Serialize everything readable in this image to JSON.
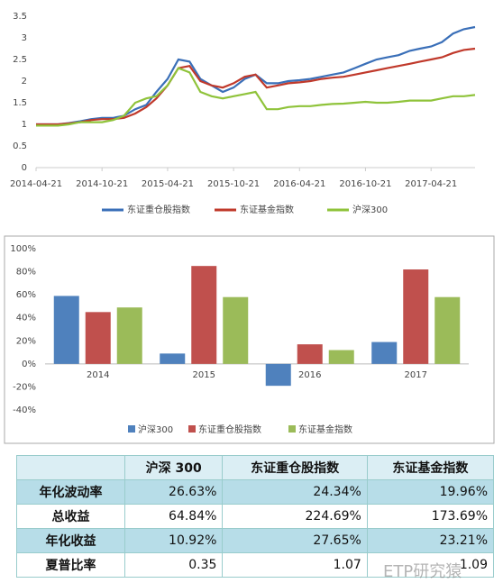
{
  "chart_data": [
    {
      "type": "line",
      "x": [
        "2014-04-21",
        "2014-05-21",
        "2014-06-21",
        "2014-07-21",
        "2014-08-21",
        "2014-09-21",
        "2014-10-21",
        "2014-11-21",
        "2014-12-21",
        "2015-01-21",
        "2015-02-21",
        "2015-03-21",
        "2015-04-21",
        "2015-05-21",
        "2015-06-21",
        "2015-07-21",
        "2015-08-21",
        "2015-09-21",
        "2015-10-21",
        "2015-11-21",
        "2015-12-21",
        "2016-01-21",
        "2016-02-21",
        "2016-03-21",
        "2016-04-21",
        "2016-05-21",
        "2016-06-21",
        "2016-07-21",
        "2016-08-21",
        "2016-09-21",
        "2016-10-21",
        "2016-11-21",
        "2016-12-21",
        "2017-01-21",
        "2017-02-21",
        "2017-03-21",
        "2017-04-21",
        "2017-05-21",
        "2017-06-21",
        "2017-07-21",
        "2017-08-21"
      ],
      "series": [
        {
          "name": "东证重仓股指数",
          "color": "#3a6fb8",
          "values": [
            1.0,
            1.0,
            1.0,
            1.03,
            1.07,
            1.12,
            1.15,
            1.15,
            1.2,
            1.35,
            1.45,
            1.75,
            2.05,
            2.5,
            2.45,
            2.05,
            1.9,
            1.75,
            1.85,
            2.05,
            2.15,
            1.95,
            1.95,
            2.0,
            2.02,
            2.05,
            2.1,
            2.15,
            2.2,
            2.3,
            2.4,
            2.5,
            2.55,
            2.6,
            2.7,
            2.75,
            2.8,
            2.9,
            3.1,
            3.2,
            3.25
          ]
        },
        {
          "name": "东证基金指数",
          "color": "#c0392b",
          "values": [
            1.0,
            1.0,
            1.0,
            1.02,
            1.05,
            1.1,
            1.12,
            1.12,
            1.15,
            1.25,
            1.4,
            1.6,
            1.9,
            2.3,
            2.35,
            2.0,
            1.9,
            1.85,
            1.95,
            2.1,
            2.15,
            1.85,
            1.9,
            1.95,
            1.97,
            2.0,
            2.05,
            2.08,
            2.1,
            2.15,
            2.2,
            2.25,
            2.3,
            2.35,
            2.4,
            2.45,
            2.5,
            2.55,
            2.65,
            2.72,
            2.75
          ]
        },
        {
          "name": "沪深300",
          "color": "#8fc33a",
          "values": [
            0.97,
            0.97,
            0.97,
            1.0,
            1.05,
            1.05,
            1.05,
            1.1,
            1.2,
            1.5,
            1.6,
            1.65,
            1.9,
            2.3,
            2.2,
            1.75,
            1.65,
            1.6,
            1.65,
            1.7,
            1.75,
            1.35,
            1.35,
            1.4,
            1.42,
            1.42,
            1.45,
            1.47,
            1.48,
            1.5,
            1.52,
            1.5,
            1.5,
            1.52,
            1.55,
            1.55,
            1.55,
            1.6,
            1.65,
            1.65,
            1.68
          ]
        }
      ],
      "xlim": [
        "2014-04-21",
        "2017-08-21"
      ],
      "xticks": [
        "2014-04-21",
        "2014-10-21",
        "2015-04-21",
        "2015-10-21",
        "2016-04-21",
        "2016-10-21",
        "2017-04-21"
      ],
      "ylim": [
        0,
        3.5
      ],
      "yticks": [
        0,
        0.5,
        1,
        1.5,
        2,
        2.5,
        3,
        3.5
      ],
      "grid": false,
      "legend": "bottom"
    },
    {
      "type": "bar",
      "categories": [
        "2014",
        "2015",
        "2016",
        "2017"
      ],
      "series": [
        {
          "name": "沪深300",
          "color": "#4f81bd",
          "values": [
            59,
            9,
            -19,
            19
          ]
        },
        {
          "name": "东证重仓股指数",
          "color": "#c0504d",
          "values": [
            45,
            85,
            17,
            82
          ]
        },
        {
          "name": "东证基金指数",
          "color": "#9bbb59",
          "values": [
            49,
            58,
            12,
            58
          ]
        }
      ],
      "ylim": [
        -40,
        100
      ],
      "yticks": [
        {
          "value": -40,
          "label": "-40%"
        },
        {
          "value": -20,
          "label": "-20%"
        },
        {
          "value": 0,
          "label": "0%"
        },
        {
          "value": 20,
          "label": "20%"
        },
        {
          "value": 40,
          "label": "40%"
        },
        {
          "value": 60,
          "label": "60%"
        },
        {
          "value": 80,
          "label": "80%"
        },
        {
          "value": 100,
          "label": "100%"
        }
      ],
      "grid": false,
      "legend": "bottom"
    }
  ],
  "table": {
    "header": [
      "沪深 300",
      "东证重仓股指数",
      "东证基金指数"
    ],
    "rows": [
      [
        "年化波动率",
        "26.63%",
        "24.34%",
        "19.96%"
      ],
      [
        "总收益",
        "64.84%",
        "224.69%",
        "173.69%"
      ],
      [
        "年化收益",
        "10.92%",
        "27.65%",
        "23.21%"
      ],
      [
        "夏普比率",
        "0.35",
        "1.07",
        "1.09"
      ]
    ]
  },
  "watermark": "ETP研究猿"
}
